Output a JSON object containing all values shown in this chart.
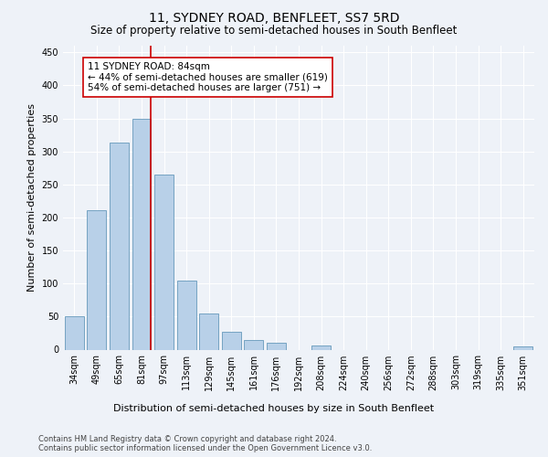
{
  "title": "11, SYDNEY ROAD, BENFLEET, SS7 5RD",
  "subtitle": "Size of property relative to semi-detached houses in South Benfleet",
  "xlabel": "Distribution of semi-detached houses by size in South Benfleet",
  "ylabel": "Number of semi-detached properties",
  "categories": [
    "34sqm",
    "49sqm",
    "65sqm",
    "81sqm",
    "97sqm",
    "113sqm",
    "129sqm",
    "145sqm",
    "161sqm",
    "176sqm",
    "192sqm",
    "208sqm",
    "224sqm",
    "240sqm",
    "256sqm",
    "272sqm",
    "288sqm",
    "303sqm",
    "319sqm",
    "335sqm",
    "351sqm"
  ],
  "values": [
    51,
    211,
    314,
    350,
    265,
    105,
    55,
    27,
    14,
    11,
    0,
    6,
    0,
    0,
    0,
    0,
    0,
    0,
    0,
    0,
    5
  ],
  "bar_color": "#b8d0e8",
  "bar_edge_color": "#6699bb",
  "property_line_index": 3,
  "property_line_color": "#cc0000",
  "annotation_line1": "11 SYDNEY ROAD: 84sqm",
  "annotation_line2": "← 44% of semi-detached houses are smaller (619)",
  "annotation_line3": "54% of semi-detached houses are larger (751) →",
  "annotation_box_color": "#ffffff",
  "annotation_box_edge_color": "#cc0000",
  "ylim": [
    0,
    460
  ],
  "yticks": [
    0,
    50,
    100,
    150,
    200,
    250,
    300,
    350,
    400,
    450
  ],
  "footer_text": "Contains HM Land Registry data © Crown copyright and database right 2024.\nContains public sector information licensed under the Open Government Licence v3.0.",
  "background_color": "#eef2f8",
  "grid_color": "#ffffff",
  "title_fontsize": 10,
  "subtitle_fontsize": 8.5,
  "tick_fontsize": 7,
  "label_fontsize": 8,
  "annotation_fontsize": 7.5,
  "footer_fontsize": 6
}
